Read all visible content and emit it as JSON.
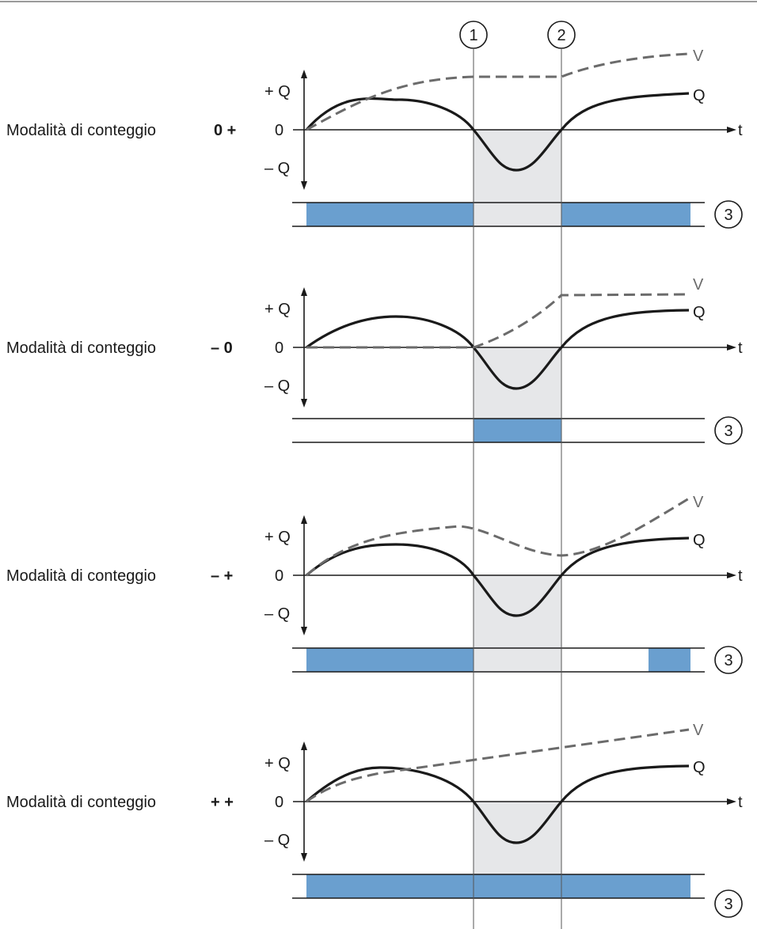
{
  "markers": [
    "1",
    "2"
  ],
  "marker3": "3",
  "axis": {
    "plus_q": "+ Q",
    "zero": "0",
    "minus_q": "– Q",
    "t": "t"
  },
  "curve_labels": {
    "v": "V",
    "q": "Q"
  },
  "mode_label": "Modalità di conteggio",
  "modes": [
    "0 +",
    "– 0",
    "– +",
    "+ +"
  ],
  "colors": {
    "bar": "#6a9fcf",
    "shade": "#e6e7e9",
    "q_curve": "#1a1a1a",
    "v_curve": "#6b6b6b",
    "top_rule": "#9a9a9a"
  }
}
